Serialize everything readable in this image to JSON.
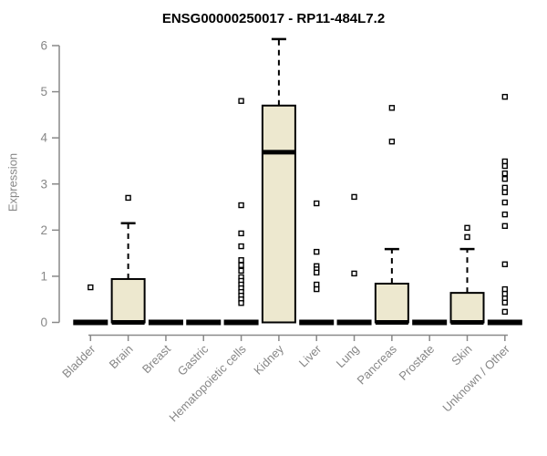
{
  "chart_data": {
    "type": "boxplot",
    "title": "ENSG00000250017 - RP11-484L7.2",
    "ylabel": "Expression",
    "xlabel": "",
    "yticks": [
      0,
      1,
      2,
      3,
      4,
      5,
      6
    ],
    "ylim": [
      0,
      6.2
    ],
    "grid": false,
    "legend": "none",
    "x_label_rotation": 45,
    "colors": {
      "box_fill": "#ede8cf",
      "box_stroke": "#000000",
      "median": "#000000",
      "whisker": "#000000",
      "outlier_fill": "#ffffff",
      "outlier_stroke": "#000000",
      "axis": "#898989",
      "tick_label": "#878787",
      "title": "#000000",
      "background": "#ffffff"
    },
    "categories": [
      "Bladder",
      "Brain",
      "Breast",
      "Gastric",
      "Hematopoietic cells",
      "Kidney",
      "Liver",
      "Lung",
      "Pancreas",
      "Prostate",
      "Skin",
      "Unknown / Other"
    ],
    "series": [
      {
        "category": "Bladder",
        "q1": 0,
        "median": 0,
        "q3": 0,
        "whisker_low": 0,
        "whisker_high": 0,
        "outliers": [
          0.76
        ]
      },
      {
        "category": "Brain",
        "q1": 0,
        "median": 0,
        "q3": 0.94,
        "whisker_low": 0,
        "whisker_high": 2.15,
        "outliers": [
          2.7
        ]
      },
      {
        "category": "Breast",
        "q1": 0,
        "median": 0,
        "q3": 0,
        "whisker_low": 0,
        "whisker_high": 0,
        "outliers": []
      },
      {
        "category": "Gastric",
        "q1": 0,
        "median": 0,
        "q3": 0,
        "whisker_low": 0,
        "whisker_high": 0,
        "outliers": []
      },
      {
        "category": "Hematopoietic cells",
        "q1": 0,
        "median": 0,
        "q3": 0,
        "whisker_low": 0,
        "whisker_high": 0,
        "outliers": [
          4.8,
          2.54,
          1.93,
          1.65,
          1.35,
          1.24,
          1.12,
          0.98,
          0.9,
          0.82,
          0.74,
          0.66,
          0.58,
          0.5,
          0.42
        ]
      },
      {
        "category": "Kidney",
        "q1": 0,
        "median": 3.69,
        "q3": 4.7,
        "whisker_low": 0,
        "whisker_high": 6.14,
        "outliers": []
      },
      {
        "category": "Liver",
        "q1": 0,
        "median": 0,
        "q3": 0,
        "whisker_low": 0,
        "whisker_high": 0,
        "outliers": [
          2.58,
          1.53,
          1.22,
          1.15,
          1.08,
          0.82,
          0.72
        ]
      },
      {
        "category": "Lung",
        "q1": 0,
        "median": 0,
        "q3": 0,
        "whisker_low": 0,
        "whisker_high": 0,
        "outliers": [
          2.72,
          1.06
        ]
      },
      {
        "category": "Pancreas",
        "q1": 0,
        "median": 0,
        "q3": 0.84,
        "whisker_low": 0,
        "whisker_high": 1.59,
        "outliers": [
          4.65,
          3.92
        ]
      },
      {
        "category": "Prostate",
        "q1": 0,
        "median": 0,
        "q3": 0,
        "whisker_low": 0,
        "whisker_high": 0,
        "outliers": []
      },
      {
        "category": "Skin",
        "q1": 0,
        "median": 0,
        "q3": 0.64,
        "whisker_low": 0,
        "whisker_high": 1.59,
        "outliers": [
          2.05,
          1.85
        ]
      },
      {
        "category": "Unknown / Other",
        "q1": 0,
        "median": 0,
        "q3": 0,
        "whisker_low": 0,
        "whisker_high": 0,
        "outliers": [
          4.89,
          3.49,
          3.39,
          3.23,
          3.11,
          2.92,
          2.82,
          2.6,
          2.34,
          2.09,
          1.26,
          0.72,
          0.62,
          0.52,
          0.43,
          0.23
        ]
      }
    ]
  }
}
